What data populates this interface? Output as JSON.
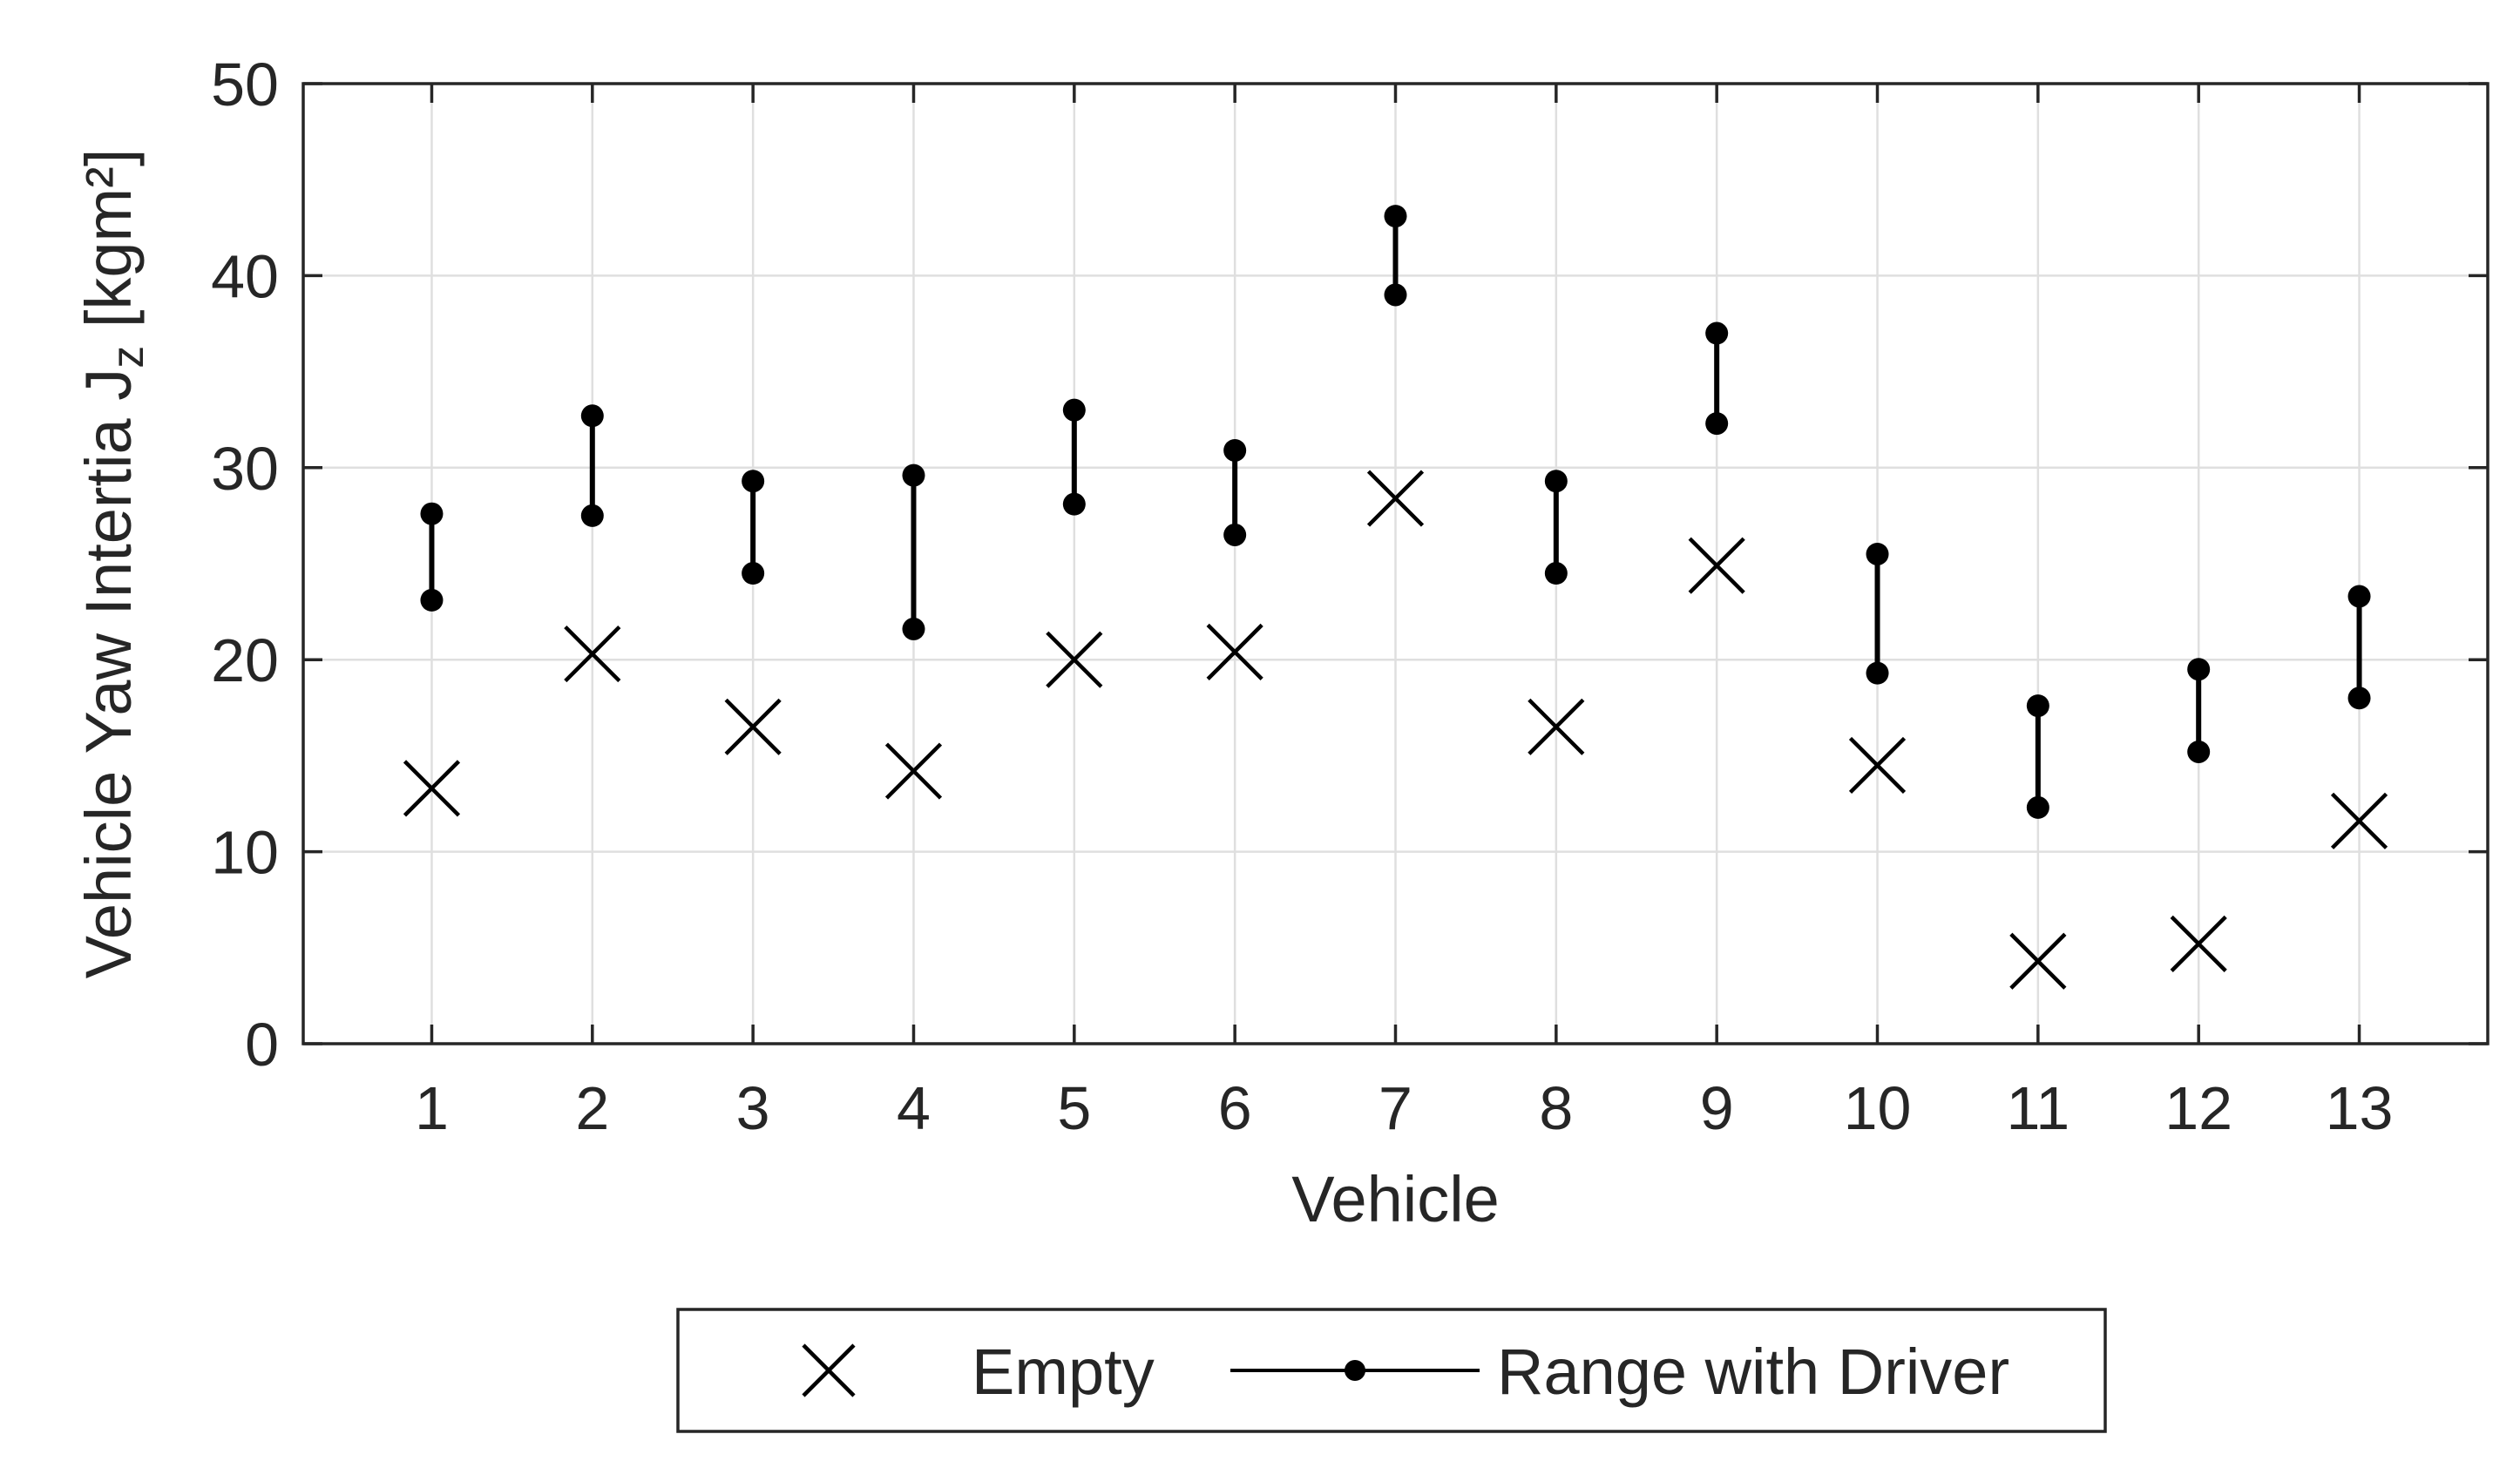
{
  "chart_data": {
    "type": "scatter",
    "title": "",
    "xlabel": "Vehicle",
    "ylabel": "Vehicle Yaw Intertia J",
    "ylabel_sub": "z",
    "ylabel_unit": " [kgm²]",
    "xlim": [
      0.2,
      13.8
    ],
    "ylim": [
      0,
      50
    ],
    "grid": true,
    "categories": [
      "1",
      "2",
      "3",
      "4",
      "5",
      "6",
      "7",
      "8",
      "9",
      "10",
      "11",
      "12",
      "13"
    ],
    "x_ticks": [
      1,
      2,
      3,
      4,
      5,
      6,
      7,
      8,
      9,
      10,
      11,
      12,
      13
    ],
    "y_ticks": [
      0,
      10,
      20,
      30,
      40,
      50
    ],
    "series": [
      {
        "name": "Empty",
        "marker": "x",
        "values": [
          13.3,
          20.3,
          16.5,
          14.2,
          20.0,
          20.4,
          28.4,
          16.5,
          24.9,
          14.5,
          4.3,
          5.2,
          11.6
        ]
      },
      {
        "name": "Range with Driver",
        "marker": "dot-line",
        "low": [
          23.1,
          27.5,
          24.5,
          21.6,
          28.1,
          26.5,
          39.0,
          24.5,
          32.3,
          19.3,
          12.3,
          15.2,
          18.0
        ],
        "high": [
          27.6,
          32.7,
          29.3,
          29.6,
          33.0,
          30.9,
          43.1,
          29.3,
          37.0,
          25.5,
          17.6,
          19.5,
          23.3
        ]
      }
    ],
    "legend": {
      "placement": "bottom-center",
      "entries": [
        "Empty",
        "Range with Driver"
      ]
    }
  }
}
